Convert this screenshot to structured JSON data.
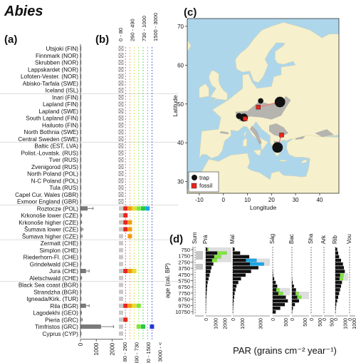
{
  "title": "Abies",
  "panel_labels": {
    "a": "(a)",
    "b": "(b)",
    "c": "(c)",
    "d": "(d)"
  },
  "colors": {
    "gray_bar": "#7a7a7a",
    "light_gray": "#c8c8c8",
    "red": "#e8261b",
    "orange": "#f59a12",
    "yellow": "#e6dd2a",
    "lime": "#7ee63a",
    "green": "#22c94a",
    "cyan": "#1aa6e6",
    "blue": "#2438d8",
    "sea": "#aed6ea",
    "land": "#f6f0cc",
    "range": "#a9a9a9",
    "link": "#e88080",
    "marker": "#333333"
  },
  "chart_data": [
    {
      "panel": "a",
      "type": "bar",
      "orientation": "horizontal",
      "sites": [
        "Utsjoki (FIN)",
        "Finnmark (NOR)",
        "Skrubben (NOR)",
        "Lappskardet (NOR)",
        "Lofoten-Vester. (NOR)",
        "Abisko-Tarfala (SWE)",
        "Iceland (ISL)",
        "Inari (FIN)",
        "Lapland (FIN)",
        "Lapland (SWE)",
        "South Lapland (FIN)",
        "Hailuoto (FIN)",
        "North Bothnia (SWE)",
        "Central Sweden (SWE)",
        "Baltic (EST, LVA)",
        "Polist.-Lovatsk. (RUS)",
        "Tver (RUS)",
        "Zvenigorod (RUS)",
        "North Poland (POL)",
        "N-C Poland (POL)",
        "Tula (RUS)",
        "Capel Cur. Wales (GBR)",
        "Exmoor England (GBR)",
        "Roztocze (POL)",
        "Krkonoše lower (CZE)",
        "Krkonoše higher (CZE)",
        "Šumava lower (CZE)",
        "Šumava higher (CZE)",
        "Zermatt (CHE)",
        "Simplon (CHE)",
        "Riederhorn-Fl. (CHE)",
        "Grindelwald (CHE)",
        "Jura (CHE)",
        "Aletschwald (CHE)",
        "Black Sea coast (BGR)",
        "Strandzha (BGR)",
        "Igneada/Kirk. (TUR)",
        "Rila (BGR)",
        "Lagodekhi (GEO)",
        "Pieria (GRC)",
        "Timfristos (GRC)",
        "Cyprus (CYP)"
      ],
      "values": [
        0,
        0,
        0,
        0,
        0,
        0,
        0,
        0,
        0,
        0,
        0,
        0,
        0,
        0,
        0,
        0,
        0,
        0,
        0,
        0,
        0,
        0,
        0,
        450,
        40,
        40,
        80,
        50,
        20,
        20,
        20,
        20,
        350,
        40,
        20,
        20,
        20,
        350,
        30,
        60,
        1300,
        20
      ],
      "error_high": [
        0,
        0,
        0,
        0,
        0,
        0,
        0,
        0,
        0,
        0,
        0,
        0,
        0,
        0,
        0,
        0,
        0,
        0,
        0,
        0,
        0,
        0,
        0,
        800,
        80,
        80,
        150,
        100,
        40,
        40,
        40,
        40,
        550,
        80,
        40,
        40,
        40,
        550,
        60,
        120,
        2100,
        40
      ],
      "group_breaks_after": [
        7,
        14,
        23,
        28,
        34
      ],
      "xticks": [
        0,
        1000,
        2000
      ],
      "xlim": [
        0,
        2700
      ]
    },
    {
      "panel": "b",
      "type": "table",
      "classes": [
        "0 - 80",
        "80 - 260",
        "260 - 490",
        "490 - 730",
        "730 - 1000",
        "1000 - 1500",
        "1500 - 3000",
        "3000 - <"
      ],
      "class_colors": [
        "#c8c8c8",
        "#e8261b",
        "#f59a12",
        "#e6dd2a",
        "#7ee63a",
        "#22c94a",
        "#1aa6e6",
        "#2438d8"
      ],
      "marker_note": "⊠ = 0 (absent); filled squares = years in PAR class",
      "rows": [
        {
          "site": "Roztocze (POL)",
          "classes": [
            0,
            1,
            2,
            3,
            4,
            5,
            6
          ]
        },
        {
          "site": "Krkonoše lower (CZE)",
          "classes": [
            0,
            1
          ]
        },
        {
          "site": "Krkonoše higher (CZE)",
          "classes": [
            0,
            1,
            2
          ]
        },
        {
          "site": "Šumava lower (CZE)",
          "classes": [
            0,
            1,
            2
          ]
        },
        {
          "site": "Šumava higher (CZE)",
          "classes": [
            0,
            2
          ]
        },
        {
          "site": "Zermatt (CHE)",
          "classes": [
            0
          ]
        },
        {
          "site": "Simplon (CHE)",
          "classes": [
            0
          ]
        },
        {
          "site": "Riederhorn-Fl. (CHE)",
          "classes": [
            0
          ]
        },
        {
          "site": "Grindelwald (CHE)",
          "classes": [
            0
          ]
        },
        {
          "site": "Jura (CHE)",
          "classes": [
            0,
            1,
            2,
            3
          ]
        },
        {
          "site": "Aletschwald (CHE)",
          "classes": [
            0
          ]
        },
        {
          "site": "Black Sea coast (BGR)",
          "classes": [
            0
          ]
        },
        {
          "site": "Strandzha (BGR)",
          "classes": [
            0
          ]
        },
        {
          "site": "Igneada/Kirk. (TUR)",
          "classes": [
            0
          ]
        },
        {
          "site": "Rila (BGR)",
          "classes": [
            0,
            1,
            2,
            3,
            4
          ]
        },
        {
          "site": "Lagodekhi (GEO)",
          "classes": [
            0
          ]
        },
        {
          "site": "Pieria (GRC)",
          "classes": [
            0,
            1
          ]
        },
        {
          "site": "Timfristos (GRC)",
          "classes": [
            0,
            4,
            5,
            7
          ]
        },
        {
          "site": "Cyprus (CYP)",
          "classes": [
            0
          ]
        }
      ]
    },
    {
      "panel": "c",
      "type": "scatter",
      "xlabel": "Longitude",
      "ylabel": "Latitude",
      "xlim": [
        -15,
        48
      ],
      "ylim": [
        27,
        72
      ],
      "xticks": [
        -10,
        0,
        10,
        20,
        30,
        40
      ],
      "yticks": [
        30,
        40,
        50,
        60,
        70
      ],
      "legend": {
        "position": "bottom-left",
        "items": [
          "trap",
          "fossil"
        ]
      },
      "traps": [
        {
          "lon": 23.5,
          "lat": 50.5,
          "size": 3
        },
        {
          "lon": 22.5,
          "lat": 38.8,
          "size": 3
        },
        {
          "lon": 8.5,
          "lat": 46.5,
          "size": 2
        },
        {
          "lon": 6.5,
          "lat": 46.9,
          "size": 1.2
        },
        {
          "lon": 15.5,
          "lat": 50.8,
          "size": 1
        }
      ],
      "fossils": [
        {
          "lon": 14.5,
          "lat": 49.2
        },
        {
          "lon": 9.0,
          "lat": 46.2
        },
        {
          "lon": 24.2,
          "lat": 42.0
        }
      ],
      "links": [
        [
          [
            14.5,
            49.2
          ],
          [
            23.5,
            50.5
          ]
        ],
        [
          [
            9.0,
            46.2
          ],
          [
            8.5,
            46.5
          ]
        ],
        [
          [
            24.2,
            42.0
          ],
          [
            22.5,
            38.8
          ]
        ]
      ]
    },
    {
      "panel": "d",
      "type": "bar",
      "orientation": "horizontal",
      "ylabel": "age (cal. BP)",
      "xlabel": "PAR (grains cm⁻² year⁻¹)",
      "ages": [
        750,
        1750,
        2750,
        3750,
        4750,
        5750,
        6750,
        7750,
        8750,
        9750,
        10750
      ],
      "sites": [
        {
          "name": "Sum",
          "xticks": [],
          "values": [],
          "shade": []
        },
        {
          "name": "Prá",
          "xticks": [
            0,
            1000,
            2000
          ],
          "values": [
            300,
            2200,
            1600,
            1200,
            800,
            600,
            500,
            400,
            300,
            200,
            150,
            120,
            90,
            60,
            40,
            30,
            20,
            10
          ],
          "shade": [
            [
              0,
              2
            ],
            [
              2,
              4
            ]
          ]
        },
        {
          "name": "Mal",
          "xticks": [
            0,
            1000,
            3000
          ],
          "values": [
            200,
            800,
            1800,
            2600,
            3400,
            2800,
            2000,
            1400,
            900,
            600,
            400,
            300,
            200,
            150,
            100,
            60,
            40,
            20
          ],
          "shade": [
            [
              3,
              5
            ]
          ]
        },
        {
          "name": "Ság",
          "xticks": [
            0,
            500
          ],
          "values": [
            0,
            0,
            0,
            0,
            0,
            0,
            10,
            20,
            60,
            120,
            180,
            260,
            400,
            520,
            600,
            480,
            300,
            120
          ],
          "shade": [
            [
              11,
              13
            ]
          ]
        },
        {
          "name": "Bac",
          "xticks": [
            0,
            500
          ],
          "values": [
            0,
            0,
            0,
            0,
            0,
            0,
            0,
            0,
            10,
            30,
            80,
            160,
            260,
            380,
            280,
            120,
            40,
            10
          ],
          "shade": [
            [
              12,
              14
            ]
          ]
        },
        {
          "name": "Sha",
          "xticks": [
            0,
            500
          ],
          "values": [
            0,
            0,
            0,
            0,
            0,
            0,
            0,
            0,
            0,
            0,
            0,
            0,
            0,
            0,
            0,
            0,
            0,
            0
          ],
          "shade": []
        },
        {
          "name": "Ark",
          "xticks": [
            0,
            500
          ],
          "values": [
            0,
            0,
            0,
            0,
            0,
            0,
            0,
            0,
            0,
            0,
            0,
            0,
            0,
            0,
            0,
            0,
            0,
            0
          ],
          "shade": []
        },
        {
          "name": "Rib",
          "xticks": [
            0,
            1000
          ],
          "values": [
            200,
            300,
            400,
            600,
            800,
            900,
            1000,
            900,
            800,
            700,
            600,
            500,
            400,
            300,
            200,
            100,
            50,
            20
          ],
          "shade": [
            [
              7,
              9
            ]
          ]
        },
        {
          "name": "Vou",
          "xticks": [
            0,
            1000
          ],
          "values": [
            0,
            0,
            0,
            0,
            0,
            0,
            0,
            0,
            0,
            0,
            0,
            0,
            0,
            0,
            0,
            0,
            0,
            0
          ],
          "shade": []
        }
      ]
    }
  ]
}
